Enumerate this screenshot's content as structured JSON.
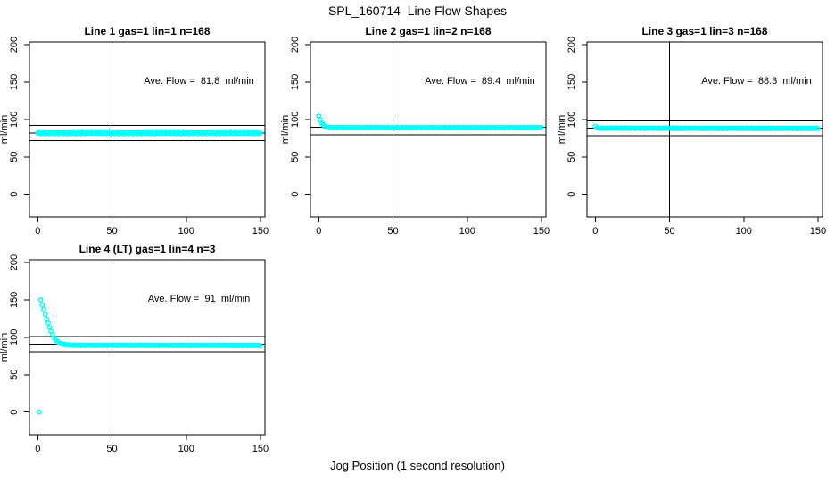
{
  "page": {
    "title": "SPL_160714  Line Flow Shapes",
    "xlabel": "Jog Position (1 second resolution)"
  },
  "chart_data": {
    "type": "scatter",
    "title": "SPL_160714  Line Flow Shapes",
    "xlabel": "Jog Position (1 second resolution)",
    "ylabel": "ml/min",
    "x_ticks": [
      0,
      50,
      100,
      150
    ],
    "y_ticks": [
      0,
      50,
      100,
      150,
      200
    ],
    "xlim": [
      -6,
      156
    ],
    "ylim": [
      -30,
      204
    ],
    "grid": false,
    "vline_x": 50,
    "point_color": "#00ffff",
    "line_color": "#000000",
    "layout": "2 rows x 3 cols, 4th panel in row 2 col 1",
    "plots": [
      {
        "title": "Line 1 gas=1 lin=1 n=168",
        "annotation": "Ave. Flow =  81.8  ml/min",
        "ave_flow": 81.8,
        "n": 168,
        "hlines": [
          91.8,
          81.8,
          71.8
        ],
        "jitter": 1.1,
        "anchors": [
          [
            0,
            81.8
          ],
          [
            150,
            81.8
          ]
        ],
        "extra_points": []
      },
      {
        "title": "Line 2 gas=1 lin=2 n=168",
        "annotation": "Ave. Flow =  89.4  ml/min",
        "ave_flow": 89.4,
        "n": 168,
        "hlines": [
          99.4,
          89.4,
          79.4
        ],
        "jitter": 0.5,
        "anchors": [
          [
            0,
            104
          ],
          [
            1,
            99.5
          ],
          [
            2,
            95.5
          ],
          [
            3,
            92.5
          ],
          [
            4,
            90.8
          ],
          [
            5,
            89.8
          ],
          [
            7,
            89.2
          ],
          [
            10,
            89.0
          ],
          [
            150,
            88.9
          ]
        ],
        "extra_points": []
      },
      {
        "title": "Line 3 gas=1 lin=3 n=168",
        "annotation": "Ave. Flow =  88.3  ml/min",
        "ave_flow": 88.3,
        "n": 168,
        "hlines": [
          98.3,
          88.3,
          78.3
        ],
        "jitter": 0.5,
        "anchors": [
          [
            0,
            91
          ],
          [
            1,
            89
          ],
          [
            2,
            88.4
          ],
          [
            150,
            88.2
          ]
        ],
        "extra_points": []
      },
      {
        "title": "Line 4 (LT) gas=1 lin=4 n=3",
        "annotation": "Ave. Flow =  91  ml/min",
        "ave_flow": 91,
        "n": 3,
        "hlines": [
          101,
          91,
          81
        ],
        "jitter": 0.45,
        "anchors": [
          [
            2,
            150
          ],
          [
            3,
            143.5
          ],
          [
            4,
            137
          ],
          [
            5,
            130.5
          ],
          [
            6,
            124.5
          ],
          [
            7,
            118.5
          ],
          [
            8,
            113
          ],
          [
            9,
            108
          ],
          [
            10,
            103.5
          ],
          [
            11,
            99.8
          ],
          [
            12,
            96.8
          ],
          [
            13,
            94.6
          ],
          [
            14,
            93
          ],
          [
            15,
            92
          ],
          [
            16,
            91.3
          ],
          [
            18,
            90.4
          ],
          [
            20,
            89.9
          ],
          [
            24,
            89.5
          ],
          [
            30,
            89.4
          ],
          [
            150,
            89.3
          ]
        ],
        "extra_points": [
          [
            1,
            0
          ]
        ]
      }
    ]
  }
}
